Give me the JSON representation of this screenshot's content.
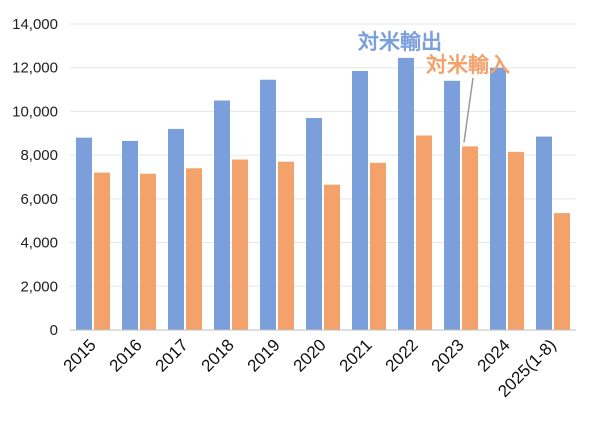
{
  "chart_data": {
    "type": "bar",
    "categories": [
      "2015",
      "2016",
      "2017",
      "2018",
      "2019",
      "2020",
      "2021",
      "2022",
      "2023",
      "2024",
      "2025(1-8)"
    ],
    "series": [
      {
        "name": "対米輸出",
        "color": "#7a9fdb",
        "values": [
          8800,
          8650,
          9200,
          10500,
          11450,
          9700,
          11850,
          12450,
          11400,
          12000,
          8850
        ]
      },
      {
        "name": "対米輸入",
        "color": "#f4a26c",
        "values": [
          7200,
          7150,
          7400,
          7800,
          7700,
          6650,
          7650,
          8900,
          8400,
          8150,
          5350
        ]
      }
    ],
    "ylim": [
      0,
      14000
    ],
    "yticks": [
      0,
      2000,
      4000,
      6000,
      8000,
      10000,
      12000,
      14000
    ],
    "ytick_labels": [
      "0",
      "2,000",
      "4,000",
      "6,000",
      "8,000",
      "10,000",
      "12,000",
      "14,000"
    ],
    "grid": true,
    "legend": "top-right (direct labels)",
    "title": "",
    "xlabel": "",
    "ylabel": ""
  }
}
